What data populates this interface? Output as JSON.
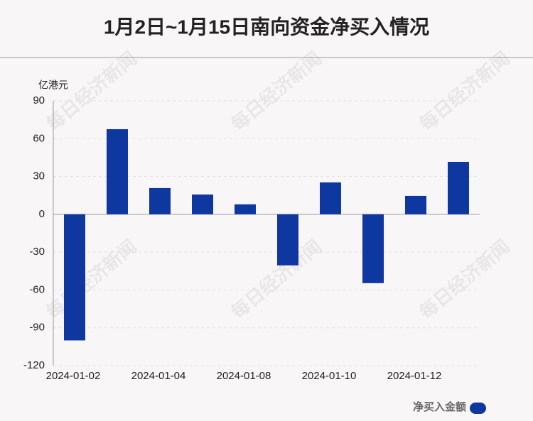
{
  "chart_data": {
    "type": "bar",
    "title": "1月2日~1月15日南向资金净买入情况",
    "y_label": "亿港元",
    "watermark": "每日经济新闻",
    "categories": [
      "2024-01-02",
      null,
      "2024-01-04",
      null,
      "2024-01-08",
      null,
      "2024-01-10",
      null,
      "2024-01-12",
      null
    ],
    "series": [
      {
        "name": "净买入金额",
        "color": "#0f37a0",
        "values": [
          -100,
          67.5,
          20.8,
          15.7,
          7.9,
          -40.5,
          25.3,
          -54.6,
          14.6,
          41.6
        ]
      }
    ],
    "ylim": [
      -120,
      90
    ],
    "yticks": [
      -120,
      -90,
      -60,
      -30,
      0,
      30,
      60,
      90
    ],
    "grid": true,
    "legend": "bottom-right"
  }
}
